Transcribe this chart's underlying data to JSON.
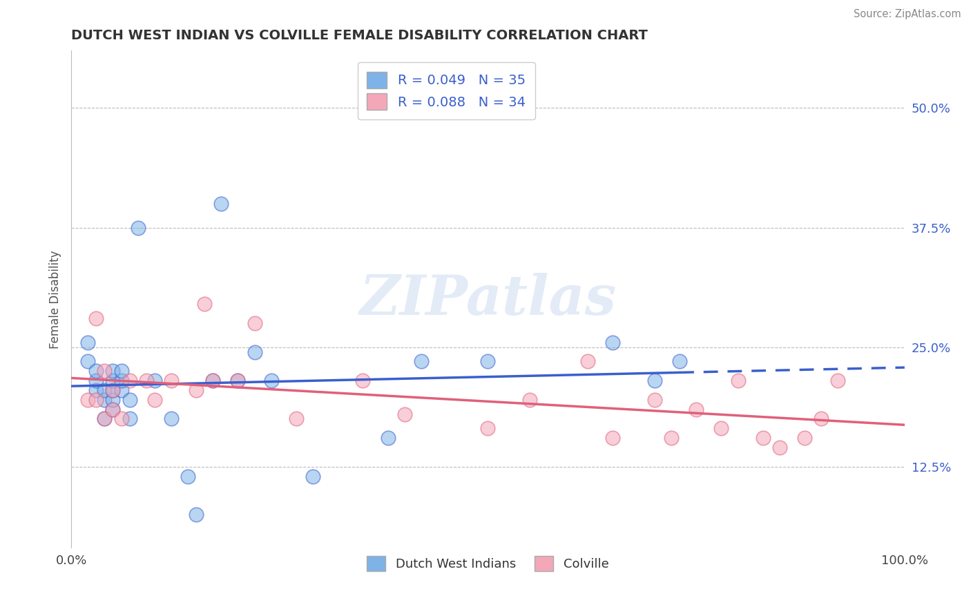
{
  "title": "DUTCH WEST INDIAN VS COLVILLE FEMALE DISABILITY CORRELATION CHART",
  "source": "Source: ZipAtlas.com",
  "xlabel": "",
  "ylabel": "Female Disability",
  "xlim": [
    0.0,
    1.0
  ],
  "ylim": [
    0.04,
    0.56
  ],
  "x_tick_labels": [
    "0.0%",
    "100.0%"
  ],
  "x_tick_positions": [
    0.0,
    1.0
  ],
  "y_tick_labels": [
    "12.5%",
    "25.0%",
    "37.5%",
    "50.0%"
  ],
  "y_tick_positions": [
    0.125,
    0.25,
    0.375,
    0.5
  ],
  "legend_labels": [
    "Dutch West Indians",
    "Colville"
  ],
  "series1_color": "#7EB3E8",
  "series2_color": "#F4A7B9",
  "series1_line_color": "#3A5FCD",
  "series2_line_color": "#E0607A",
  "R1": 0.049,
  "N1": 35,
  "R2": 0.088,
  "N2": 34,
  "watermark": "ZIPatlas",
  "series1_x": [
    0.02,
    0.02,
    0.03,
    0.03,
    0.03,
    0.04,
    0.04,
    0.04,
    0.05,
    0.05,
    0.05,
    0.05,
    0.05,
    0.06,
    0.06,
    0.06,
    0.07,
    0.07,
    0.08,
    0.1,
    0.12,
    0.14,
    0.15,
    0.17,
    0.18,
    0.2,
    0.22,
    0.24,
    0.29,
    0.38,
    0.42,
    0.5,
    0.65,
    0.7,
    0.73
  ],
  "series1_y": [
    0.235,
    0.255,
    0.205,
    0.215,
    0.225,
    0.175,
    0.195,
    0.205,
    0.185,
    0.195,
    0.205,
    0.215,
    0.225,
    0.205,
    0.215,
    0.225,
    0.175,
    0.195,
    0.375,
    0.215,
    0.175,
    0.115,
    0.075,
    0.215,
    0.4,
    0.215,
    0.245,
    0.215,
    0.115,
    0.155,
    0.235,
    0.235,
    0.255,
    0.215,
    0.235
  ],
  "series2_x": [
    0.02,
    0.03,
    0.03,
    0.04,
    0.04,
    0.05,
    0.05,
    0.06,
    0.07,
    0.09,
    0.1,
    0.12,
    0.15,
    0.16,
    0.17,
    0.2,
    0.22,
    0.27,
    0.35,
    0.4,
    0.5,
    0.55,
    0.62,
    0.65,
    0.7,
    0.72,
    0.75,
    0.78,
    0.8,
    0.83,
    0.85,
    0.88,
    0.9,
    0.92
  ],
  "series2_y": [
    0.195,
    0.195,
    0.28,
    0.175,
    0.225,
    0.185,
    0.205,
    0.175,
    0.215,
    0.215,
    0.195,
    0.215,
    0.205,
    0.295,
    0.215,
    0.215,
    0.275,
    0.175,
    0.215,
    0.18,
    0.165,
    0.195,
    0.235,
    0.155,
    0.195,
    0.155,
    0.185,
    0.165,
    0.215,
    0.155,
    0.145,
    0.155,
    0.175,
    0.215
  ],
  "series1_marker_size": 220,
  "series2_marker_size": 220,
  "background_color": "#FFFFFF",
  "grid_color": "#BBBBBB"
}
